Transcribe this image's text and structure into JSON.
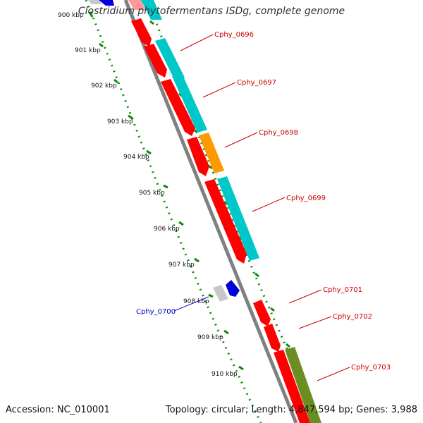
{
  "title": "Clostridium phytofermentans ISDg, complete genome",
  "footer": {
    "accession": "Accession: NC_010001",
    "summary": "Topology: circular; Length: 4,847,594 bp; Genes: 3,988"
  },
  "colors": {
    "backbone": "#808080",
    "tick": "#0a8a0a",
    "forward_gene": "#ff0000",
    "reverse_gene": "#0000dd",
    "cds_cyan": "#00c8c8",
    "cds_orange": "#ff9900",
    "cds_olive": "#6b8e23",
    "pseudo_gray": "#c8c8c8",
    "label_red": "#cc0000",
    "label_blue": "#0000cc"
  },
  "ticks": [
    "900 kbp",
    "901 kbp",
    "902 kbp",
    "903 kbp",
    "904 kbp",
    "905 kbp",
    "906 kbp",
    "907 kbp",
    "908 kbp",
    "909 kbp",
    "910 kbp"
  ],
  "gene_labels": [
    {
      "id": "Cphy_0696",
      "color": "label_red"
    },
    {
      "id": "Cphy_0697",
      "color": "label_red"
    },
    {
      "id": "Cphy_0698",
      "color": "label_red"
    },
    {
      "id": "Cphy_0699",
      "color": "label_red"
    },
    {
      "id": "Cphy_0700",
      "color": "label_blue"
    },
    {
      "id": "Cphy_0701",
      "color": "label_red"
    },
    {
      "id": "Cphy_0702",
      "color": "label_red"
    },
    {
      "id": "Cphy_0703",
      "color": "label_red"
    }
  ]
}
